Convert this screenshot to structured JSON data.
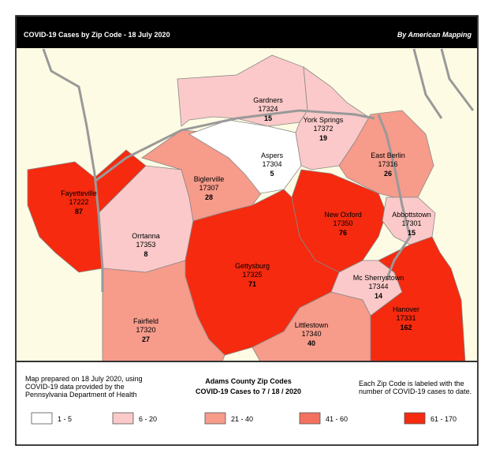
{
  "header": {
    "title": "COVID-19 Cases by Zip Code - 18 July 2020",
    "byline": "By American Mapping"
  },
  "regions": [
    {
      "name": "Fayetteville",
      "zip": "17222",
      "cases": 87,
      "color": "#f52a0f"
    },
    {
      "name": "Orrtanna",
      "zip": "17353",
      "cases": 8,
      "color": "#fbc9c9"
    },
    {
      "name": "Biglerville",
      "zip": "17307",
      "cases": 28,
      "color": "#f79b8b"
    },
    {
      "name": "Gardners",
      "zip": "17324",
      "cases": 15,
      "color": "#fbc9c9"
    },
    {
      "name": "Aspers",
      "zip": "17304",
      "cases": 5,
      "color": "#ffffff"
    },
    {
      "name": "York Springs",
      "zip": "17372",
      "cases": 19,
      "color": "#fbc9c9"
    },
    {
      "name": "East Berlin",
      "zip": "17316",
      "cases": 26,
      "color": "#f79b8b"
    },
    {
      "name": "New Oxford",
      "zip": "17350",
      "cases": 76,
      "color": "#f52a0f"
    },
    {
      "name": "Abbottstown",
      "zip": "17301",
      "cases": 15,
      "color": "#fbc9c9"
    },
    {
      "name": "Gettysburg",
      "zip": "17325",
      "cases": 71,
      "color": "#f52a0f"
    },
    {
      "name": "Fairfield",
      "zip": "17320",
      "cases": 27,
      "color": "#f79b8b"
    },
    {
      "name": "Littlestown",
      "zip": "17340",
      "cases": 40,
      "color": "#f79b8b"
    },
    {
      "name": "Mc Sherrystown",
      "zip": "17344",
      "cases": 14,
      "color": "#fbc9c9"
    },
    {
      "name": "Hanover",
      "zip": "17331",
      "cases": 162,
      "color": "#f52a0f"
    }
  ],
  "footer": {
    "note": [
      "Map prepared on 18 July 2020, using",
      "COVID-19 data provided by the",
      "Pennsylvania Department of Health"
    ],
    "heading": [
      "Adams County Zip Codes",
      "COVID-19 Cases to 7 / 18 / 2020"
    ],
    "explain": [
      "Each Zip Code is labeled with the",
      "number of COVID-19 cases to date."
    ]
  },
  "legend": [
    {
      "label": "1 - 5",
      "color": "#ffffff"
    },
    {
      "label": "6 - 20",
      "color": "#fbc9c9"
    },
    {
      "label": "21 - 40",
      "color": "#f79b8b"
    },
    {
      "label": "41 - 60",
      "color": "#f3715e"
    },
    {
      "label": "61 - 170",
      "color": "#f52a0f"
    }
  ]
}
